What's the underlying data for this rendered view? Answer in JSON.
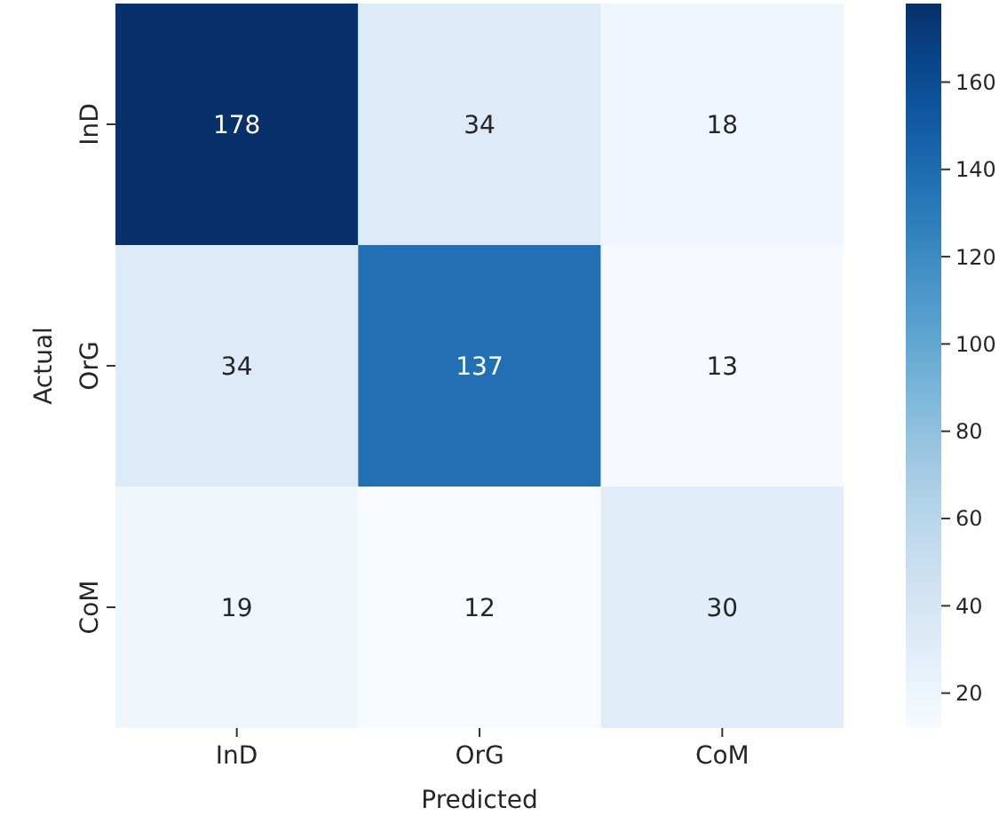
{
  "chart_data": {
    "type": "heatmap",
    "xlabel": "Predicted",
    "ylabel": "Actual",
    "categories": [
      "InD",
      "OrG",
      "CoM"
    ],
    "y_categories": [
      "InD",
      "OrG",
      "CoM"
    ],
    "cells": [
      [
        178,
        34,
        18
      ],
      [
        34,
        137,
        13
      ],
      [
        19,
        12,
        30
      ]
    ],
    "data_labels": true,
    "clim": [
      12,
      178
    ],
    "cticks": [
      20,
      40,
      60,
      80,
      100,
      120,
      140,
      160
    ]
  }
}
